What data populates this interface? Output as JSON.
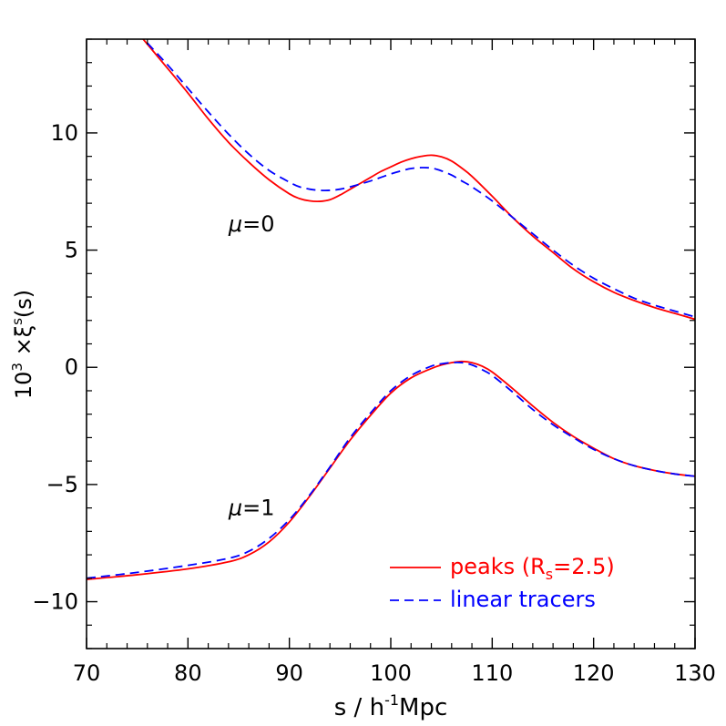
{
  "chart_data": {
    "type": "line",
    "xlabel_parts": {
      "pre": "s / h",
      "sup": "-1",
      "post": "Mpc"
    },
    "ylabel_parts": {
      "base": "10",
      "sup": "3",
      "mid": " ×ξ",
      "sup2": "s",
      "post": "(s)"
    },
    "xlim": [
      70,
      130
    ],
    "ylim": [
      -12,
      14
    ],
    "xticks": [
      70,
      80,
      90,
      100,
      110,
      120,
      130
    ],
    "yticks": [
      -10,
      -5,
      0,
      5,
      10
    ],
    "ytick_labels": [
      "−10",
      "−5",
      "0",
      "5",
      "10"
    ],
    "x_minor_step": 2,
    "y_minor_step": 1,
    "grid": false,
    "legend_position": "bottom-right",
    "annotations": [
      {
        "id": "mu0",
        "sym": "μ",
        "text": "=0",
        "x": 84.0,
        "y": 5.8
      },
      {
        "id": "mu1",
        "sym": "μ",
        "text": "=1",
        "x": 84.0,
        "y": -6.3
      }
    ],
    "series": [
      {
        "name_parts": {
          "pre": "peaks (R",
          "sub": "s",
          "post": "=2.5)"
        },
        "color": "#ff0000",
        "dash": "solid",
        "group": "mu=0",
        "x": [
          75,
          78,
          80,
          82,
          84,
          86,
          88,
          90,
          91,
          92,
          93,
          94,
          95,
          96,
          97,
          98,
          99,
          100,
          101,
          102,
          103,
          104,
          105,
          106,
          107,
          108,
          110,
          112,
          114,
          116,
          118,
          120,
          122,
          124,
          126,
          128,
          130
        ],
        "y": [
          14.3,
          12.75,
          11.7,
          10.6,
          9.6,
          8.75,
          8.0,
          7.4,
          7.2,
          7.1,
          7.08,
          7.15,
          7.35,
          7.6,
          7.85,
          8.1,
          8.35,
          8.55,
          8.75,
          8.9,
          9.0,
          9.05,
          8.98,
          8.8,
          8.5,
          8.15,
          7.3,
          6.4,
          5.6,
          4.9,
          4.2,
          3.65,
          3.2,
          2.85,
          2.55,
          2.3,
          2.05
        ]
      },
      {
        "name_parts": {
          "pre": "linear tracers",
          "sub": "",
          "post": ""
        },
        "color": "#0000ff",
        "dash": "dashed",
        "group": "mu=0",
        "x": [
          75,
          78,
          80,
          82,
          84,
          86,
          88,
          90,
          91,
          92,
          93,
          94,
          95,
          96,
          97,
          98,
          99,
          100,
          101,
          102,
          103,
          104,
          105,
          106,
          107,
          108,
          110,
          112,
          114,
          116,
          118,
          120,
          122,
          124,
          126,
          128,
          130
        ],
        "y": [
          14.3,
          12.9,
          11.9,
          10.9,
          9.95,
          9.1,
          8.4,
          7.9,
          7.7,
          7.6,
          7.55,
          7.55,
          7.6,
          7.7,
          7.82,
          7.95,
          8.1,
          8.25,
          8.38,
          8.48,
          8.52,
          8.5,
          8.38,
          8.2,
          7.95,
          7.7,
          7.1,
          6.4,
          5.7,
          5.0,
          4.35,
          3.8,
          3.35,
          2.95,
          2.65,
          2.4,
          2.15
        ]
      },
      {
        "name_parts": {
          "pre": "peaks (R",
          "sub": "s",
          "post": "=2.5)"
        },
        "color": "#ff0000",
        "dash": "solid",
        "group": "mu=1",
        "x": [
          70,
          75,
          80,
          84,
          86,
          88,
          90,
          92,
          94,
          96,
          98,
          100,
          102,
          104,
          105,
          106,
          107,
          108,
          109,
          110,
          112,
          114,
          116,
          118,
          120,
          122,
          124,
          126,
          128,
          130
        ],
        "y": [
          -9.05,
          -8.85,
          -8.6,
          -8.3,
          -8.0,
          -7.45,
          -6.6,
          -5.5,
          -4.3,
          -3.1,
          -2.05,
          -1.1,
          -0.45,
          -0.05,
          0.1,
          0.2,
          0.25,
          0.2,
          0.05,
          -0.2,
          -0.9,
          -1.65,
          -2.35,
          -2.95,
          -3.45,
          -3.9,
          -4.2,
          -4.4,
          -4.55,
          -4.65
        ]
      },
      {
        "name_parts": {
          "pre": "linear tracers",
          "sub": "",
          "post": ""
        },
        "color": "#0000ff",
        "dash": "dashed",
        "group": "mu=1",
        "x": [
          70,
          75,
          80,
          84,
          86,
          88,
          90,
          92,
          94,
          96,
          98,
          100,
          102,
          104,
          105,
          106,
          107,
          108,
          109,
          110,
          112,
          114,
          116,
          118,
          120,
          122,
          124,
          126,
          128,
          130
        ],
        "y": [
          -9.0,
          -8.75,
          -8.45,
          -8.15,
          -7.85,
          -7.3,
          -6.5,
          -5.45,
          -4.25,
          -3.0,
          -1.95,
          -1.0,
          -0.35,
          0.05,
          0.15,
          0.2,
          0.2,
          0.1,
          -0.1,
          -0.35,
          -1.05,
          -1.8,
          -2.45,
          -3.0,
          -3.5,
          -3.9,
          -4.2,
          -4.4,
          -4.55,
          -4.65
        ]
      }
    ],
    "legend": [
      {
        "name_parts": {
          "pre": "peaks (R",
          "sub": "s",
          "post": "=2.5)"
        },
        "color": "#ff0000",
        "dash": "solid"
      },
      {
        "name_parts": {
          "pre": "linear tracers",
          "sub": "",
          "post": ""
        },
        "color": "#0000ff",
        "dash": "dashed"
      }
    ]
  }
}
